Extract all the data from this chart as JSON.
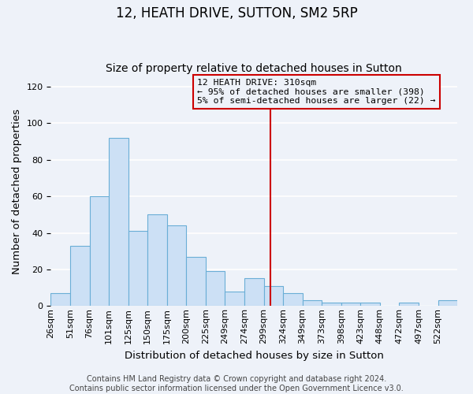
{
  "title": "12, HEATH DRIVE, SUTTON, SM2 5RP",
  "subtitle": "Size of property relative to detached houses in Sutton",
  "xlabel": "Distribution of detached houses by size in Sutton",
  "ylabel": "Number of detached properties",
  "bar_labels": [
    "26sqm",
    "51sqm",
    "76sqm",
    "101sqm",
    "125sqm",
    "150sqm",
    "175sqm",
    "200sqm",
    "225sqm",
    "249sqm",
    "274sqm",
    "299sqm",
    "324sqm",
    "349sqm",
    "373sqm",
    "398sqm",
    "423sqm",
    "448sqm",
    "472sqm",
    "497sqm",
    "522sqm"
  ],
  "bar_values": [
    7,
    33,
    60,
    92,
    41,
    50,
    44,
    27,
    19,
    8,
    15,
    11,
    7,
    3,
    2,
    2,
    2,
    0,
    2,
    0,
    3
  ],
  "bar_color_fill": "#cce0f5",
  "bar_color_edge": "#6aaed6",
  "vline_x": 310,
  "vline_color": "#cc0000",
  "annotation_title": "12 HEATH DRIVE: 310sqm",
  "annotation_line1": "← 95% of detached houses are smaller (398)",
  "annotation_line2": "5% of semi-detached houses are larger (22) →",
  "annotation_box_edge": "#cc0000",
  "footer1": "Contains HM Land Registry data © Crown copyright and database right 2024.",
  "footer2": "Contains public sector information licensed under the Open Government Licence v3.0.",
  "ylim": [
    0,
    125
  ],
  "bin_width": 25,
  "background_color": "#eef2f9",
  "grid_color": "#ffffff",
  "title_fontsize": 12,
  "subtitle_fontsize": 10,
  "axis_label_fontsize": 9.5,
  "tick_fontsize": 8,
  "footer_fontsize": 7
}
